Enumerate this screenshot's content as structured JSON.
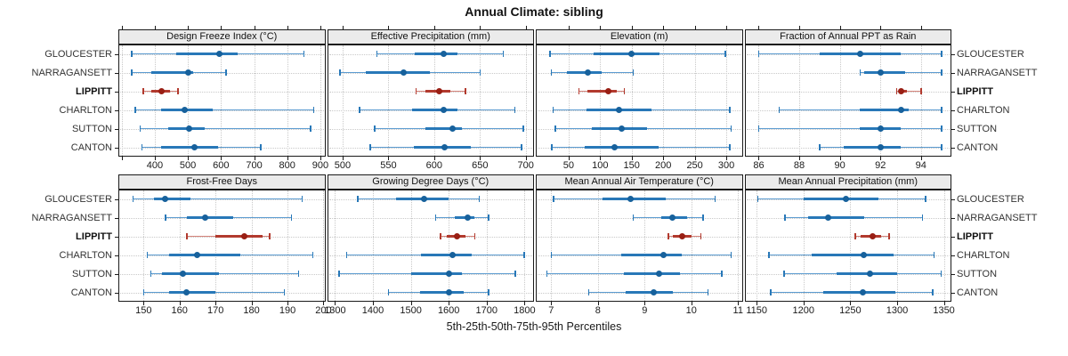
{
  "title": "Annual Climate: sibling",
  "caption": "5th-25th-50th-75th-95th Percentiles",
  "colors": {
    "blue_line": "#5B9BD0",
    "blue_bar": "#2878B8",
    "blue_dot": "#17619C",
    "red_line": "#D4837A",
    "red_bar": "#B23A2E",
    "red_dot": "#991F14",
    "grid": "#C9C9C9",
    "border": "#1A1A1A",
    "strip_bg": "#EBEBEB",
    "text": "#1A1A1A",
    "label_text": "#333333"
  },
  "chart_data": {
    "type": "interval-dotplot",
    "layout": "2 rows x 4 cols lattice",
    "percentiles": [
      5,
      25,
      50,
      75,
      95
    ],
    "sites": [
      "GLOUCESTER",
      "NARRAGANSETT",
      "LIPPITT",
      "CHARLTON",
      "SUTTON",
      "CANTON"
    ],
    "highlight_site": "LIPPITT",
    "panels": [
      {
        "title": "Design Freeze Index (°C)",
        "xmin": 290,
        "xmax": 915,
        "ticks": [
          400,
          500,
          600,
          700,
          800,
          900
        ],
        "minor_ticks": [
          300
        ],
        "values": [
          [
            330,
            465,
            595,
            650,
            850
          ],
          [
            330,
            390,
            500,
            515,
            615
          ],
          [
            365,
            390,
            420,
            445,
            470
          ],
          [
            340,
            420,
            490,
            575,
            880
          ],
          [
            355,
            440,
            505,
            550,
            870
          ],
          [
            360,
            420,
            520,
            590,
            720
          ]
        ]
      },
      {
        "title": "Effective Precipitation (mm)",
        "xmin": 483,
        "xmax": 709,
        "ticks": [
          500,
          550,
          600,
          650,
          700
        ],
        "minor_ticks": [],
        "values": [
          [
            537,
            579,
            610,
            625,
            675
          ],
          [
            497,
            525,
            567,
            595,
            650
          ],
          [
            580,
            590,
            605,
            618,
            634
          ],
          [
            518,
            576,
            610,
            625,
            688
          ],
          [
            535,
            590,
            620,
            630,
            697
          ],
          [
            530,
            578,
            611,
            640,
            695
          ]
        ]
      },
      {
        "title": "Elevation (m)",
        "xmin": -2,
        "xmax": 326,
        "ticks": [
          50,
          100,
          150,
          200,
          250,
          300
        ],
        "minor_ticks": [],
        "values": [
          [
            20,
            90,
            149,
            194,
            298
          ],
          [
            22,
            48,
            80,
            103,
            152
          ],
          [
            66,
            80,
            113,
            126,
            138
          ],
          [
            25,
            78,
            130,
            181,
            305
          ],
          [
            29,
            87,
            134,
            174,
            307
          ],
          [
            23,
            75,
            123,
            192,
            305
          ]
        ]
      },
      {
        "title": "Fraction of Annual PPT as Rain",
        "xmin": 85.3,
        "xmax": 95.5,
        "ticks": [
          86,
          88,
          90,
          92,
          94
        ],
        "minor_ticks": [],
        "values": [
          [
            86,
            89,
            91,
            93,
            95
          ],
          [
            91,
            91.2,
            92,
            93.2,
            95
          ],
          [
            92.8,
            92.9,
            93,
            93.3,
            94
          ],
          [
            87,
            91,
            93,
            93.4,
            95
          ],
          [
            86,
            91,
            92,
            93,
            95
          ],
          [
            89,
            90.2,
            92,
            93,
            95
          ]
        ]
      },
      {
        "title": "Frost-Free Days",
        "xmin": 143,
        "xmax": 200.5,
        "ticks": [
          150,
          160,
          170,
          180,
          190,
          200
        ],
        "minor_ticks": [],
        "values": [
          [
            147,
            153,
            156,
            163,
            194
          ],
          [
            156,
            162,
            167,
            175,
            191
          ],
          [
            162,
            170,
            178,
            183,
            185
          ],
          [
            151,
            157,
            165,
            177,
            197
          ],
          [
            152,
            155,
            161,
            171,
            193
          ],
          [
            150,
            157,
            162,
            170,
            189
          ]
        ]
      },
      {
        "title": "Growing Degree Days (°C)",
        "xmin": 1279,
        "xmax": 1825,
        "ticks": [
          1300,
          1400,
          1500,
          1600,
          1700,
          1800
        ],
        "minor_ticks": [],
        "values": [
          [
            1360,
            1460,
            1535,
            1600,
            1680
          ],
          [
            1565,
            1615,
            1650,
            1668,
            1705
          ],
          [
            1578,
            1595,
            1623,
            1645,
            1668
          ],
          [
            1330,
            1527,
            1610,
            1660,
            1798
          ],
          [
            1310,
            1500,
            1600,
            1635,
            1775
          ],
          [
            1440,
            1525,
            1600,
            1640,
            1705
          ]
        ]
      },
      {
        "title": "Mean Annual Air Temperature (°C)",
        "xmin": 6.67,
        "xmax": 11.1,
        "ticks": [
          7,
          8,
          9,
          10,
          11
        ],
        "minor_ticks": [],
        "values": [
          [
            7.05,
            8.1,
            8.7,
            9.45,
            10.5
          ],
          [
            8.75,
            9.35,
            9.6,
            9.9,
            10.25
          ],
          [
            9.5,
            9.6,
            9.8,
            10.0,
            10.2
          ],
          [
            7.0,
            8.5,
            9.4,
            9.8,
            10.85
          ],
          [
            6.9,
            8.55,
            9.3,
            9.75,
            10.65
          ],
          [
            7.8,
            8.6,
            9.2,
            9.6,
            10.35
          ]
        ]
      },
      {
        "title": "Mean Annual Precipitation (mm)",
        "xmin": 1137,
        "xmax": 1358,
        "ticks": [
          1150,
          1200,
          1250,
          1300,
          1350
        ],
        "minor_ticks": [],
        "values": [
          [
            1151,
            1200,
            1245,
            1280,
            1330
          ],
          [
            1180,
            1205,
            1226,
            1265,
            1327
          ],
          [
            1255,
            1261,
            1274,
            1283,
            1291
          ],
          [
            1163,
            1209,
            1264,
            1296,
            1339
          ],
          [
            1179,
            1235,
            1271,
            1300,
            1347
          ],
          [
            1165,
            1221,
            1263,
            1298,
            1338
          ]
        ]
      }
    ]
  }
}
